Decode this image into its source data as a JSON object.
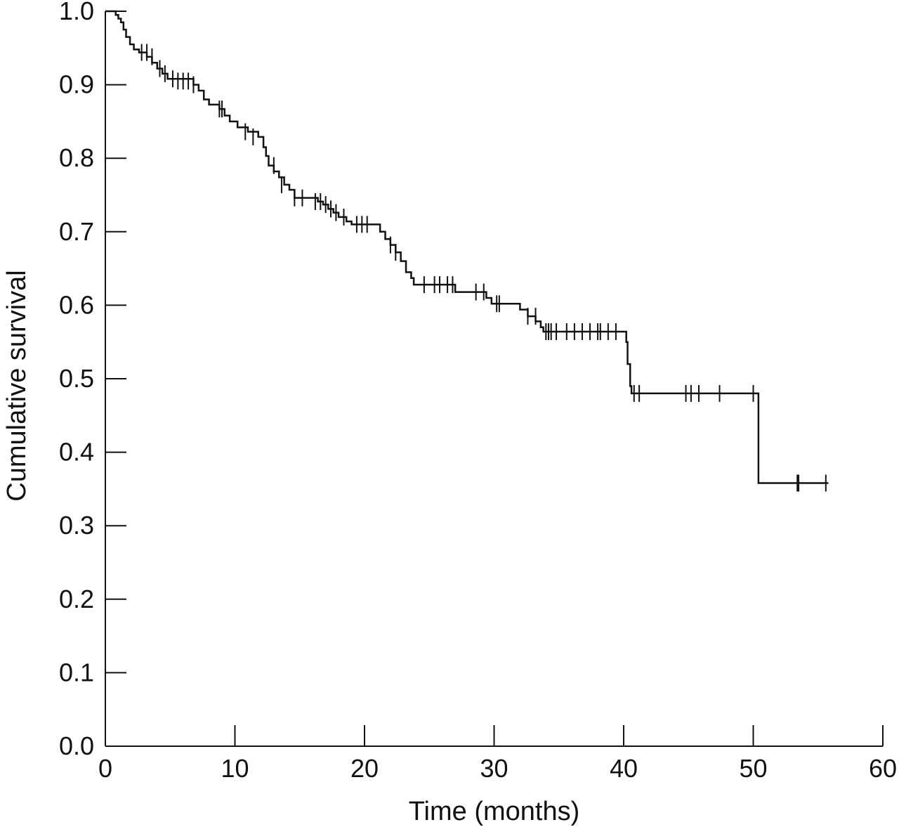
{
  "chart_data": {
    "type": "line",
    "subtype": "kaplan-meier-step",
    "title": "",
    "xlabel": "Time (months)",
    "ylabel": "Cumulative survival",
    "xlim": [
      0,
      60
    ],
    "ylim": [
      0.0,
      1.0
    ],
    "x_ticks": [
      0,
      10,
      20,
      30,
      40,
      50,
      60
    ],
    "x_tick_labels": [
      "0",
      "10",
      "20",
      "30",
      "40",
      "50",
      "60"
    ],
    "y_ticks": [
      0.0,
      0.1,
      0.2,
      0.3,
      0.4,
      0.5,
      0.6,
      0.7,
      0.8,
      0.9,
      1.0
    ],
    "y_tick_labels": [
      "0.0",
      "0.1",
      "0.2",
      "0.3",
      "0.4",
      "0.5",
      "0.6",
      "0.7",
      "0.8",
      "0.9",
      "1.0"
    ],
    "grid": false,
    "legend": "none",
    "line_color": "#111111",
    "series": [
      {
        "step_points": [
          [
            0,
            1.0
          ],
          [
            0.8,
            1.0
          ],
          [
            0.8,
            0.995
          ],
          [
            1.0,
            0.99
          ],
          [
            1.2,
            0.985
          ],
          [
            1.4,
            0.975
          ],
          [
            1.6,
            0.965
          ],
          [
            1.9,
            0.955
          ],
          [
            2.2,
            0.948
          ],
          [
            2.6,
            0.944
          ],
          [
            3.2,
            0.938
          ],
          [
            3.6,
            0.93
          ],
          [
            4.0,
            0.922
          ],
          [
            4.4,
            0.915
          ],
          [
            4.8,
            0.908
          ],
          [
            6.8,
            0.9
          ],
          [
            7.2,
            0.892
          ],
          [
            7.6,
            0.88
          ],
          [
            8.0,
            0.873
          ],
          [
            8.8,
            0.867
          ],
          [
            9.2,
            0.858
          ],
          [
            9.6,
            0.85
          ],
          [
            10.2,
            0.842
          ],
          [
            11.0,
            0.836
          ],
          [
            11.8,
            0.829
          ],
          [
            12.2,
            0.815
          ],
          [
            12.4,
            0.803
          ],
          [
            12.6,
            0.79
          ],
          [
            13.0,
            0.782
          ],
          [
            13.4,
            0.774
          ],
          [
            13.8,
            0.764
          ],
          [
            14.2,
            0.757
          ],
          [
            14.6,
            0.746
          ],
          [
            16.4,
            0.741
          ],
          [
            16.8,
            0.737
          ],
          [
            17.2,
            0.731
          ],
          [
            17.6,
            0.726
          ],
          [
            18.0,
            0.72
          ],
          [
            18.6,
            0.714
          ],
          [
            19.0,
            0.71
          ],
          [
            21.2,
            0.7
          ],
          [
            21.6,
            0.69
          ],
          [
            22.0,
            0.682
          ],
          [
            22.4,
            0.672
          ],
          [
            22.8,
            0.66
          ],
          [
            23.2,
            0.645
          ],
          [
            23.6,
            0.637
          ],
          [
            23.8,
            0.628
          ],
          [
            27.0,
            0.618
          ],
          [
            29.4,
            0.61
          ],
          [
            29.8,
            0.602
          ],
          [
            32.0,
            0.594
          ],
          [
            32.6,
            0.585
          ],
          [
            33.2,
            0.578
          ],
          [
            33.6,
            0.57
          ],
          [
            33.8,
            0.564
          ],
          [
            40.2,
            0.55
          ],
          [
            40.3,
            0.52
          ],
          [
            40.5,
            0.49
          ],
          [
            40.6,
            0.48
          ],
          [
            50.4,
            0.48
          ],
          [
            50.4,
            0.358
          ],
          [
            55.8,
            0.358
          ]
        ],
        "censored": [
          [
            2.8,
            0.944
          ],
          [
            3.2,
            0.944
          ],
          [
            3.6,
            0.938
          ],
          [
            4.2,
            0.922
          ],
          [
            4.6,
            0.915
          ],
          [
            5.2,
            0.908
          ],
          [
            5.6,
            0.905
          ],
          [
            6.0,
            0.905
          ],
          [
            6.4,
            0.905
          ],
          [
            6.8,
            0.9
          ],
          [
            8.8,
            0.867
          ],
          [
            9.0,
            0.867
          ],
          [
            10.8,
            0.836
          ],
          [
            11.4,
            0.829
          ],
          [
            13.0,
            0.79
          ],
          [
            13.6,
            0.764
          ],
          [
            14.6,
            0.746
          ],
          [
            15.2,
            0.746
          ],
          [
            16.2,
            0.741
          ],
          [
            16.6,
            0.741
          ],
          [
            17.0,
            0.737
          ],
          [
            17.4,
            0.731
          ],
          [
            17.8,
            0.726
          ],
          [
            18.4,
            0.72
          ],
          [
            19.4,
            0.71
          ],
          [
            19.8,
            0.71
          ],
          [
            20.2,
            0.71
          ],
          [
            22.0,
            0.682
          ],
          [
            22.4,
            0.672
          ],
          [
            24.6,
            0.628
          ],
          [
            25.4,
            0.628
          ],
          [
            25.8,
            0.628
          ],
          [
            26.4,
            0.628
          ],
          [
            26.8,
            0.628
          ],
          [
            28.6,
            0.618
          ],
          [
            29.2,
            0.618
          ],
          [
            30.2,
            0.602
          ],
          [
            30.4,
            0.602
          ],
          [
            32.6,
            0.585
          ],
          [
            33.2,
            0.585
          ],
          [
            34.0,
            0.564
          ],
          [
            34.2,
            0.564
          ],
          [
            34.4,
            0.564
          ],
          [
            34.8,
            0.564
          ],
          [
            35.6,
            0.564
          ],
          [
            36.2,
            0.564
          ],
          [
            36.8,
            0.564
          ],
          [
            37.4,
            0.564
          ],
          [
            38.0,
            0.564
          ],
          [
            38.2,
            0.564
          ],
          [
            38.8,
            0.564
          ],
          [
            39.4,
            0.564
          ],
          [
            40.8,
            0.48
          ],
          [
            41.2,
            0.48
          ],
          [
            44.8,
            0.48
          ],
          [
            45.2,
            0.48
          ],
          [
            45.8,
            0.48
          ],
          [
            47.4,
            0.48
          ],
          [
            50.0,
            0.48
          ],
          [
            53.4,
            0.358
          ],
          [
            53.5,
            0.358
          ],
          [
            55.6,
            0.358
          ]
        ]
      }
    ]
  }
}
